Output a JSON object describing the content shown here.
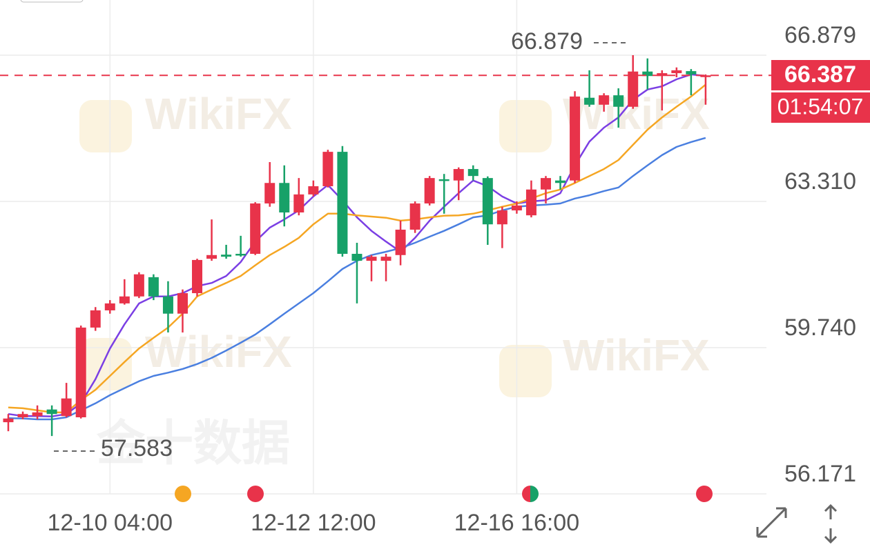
{
  "chart_data": {
    "type": "candlestick",
    "categories": [
      null,
      null,
      null,
      null,
      null,
      null,
      null,
      "12-10 04:00",
      null,
      null,
      null,
      null,
      null,
      null,
      null,
      null,
      null,
      null,
      null,
      null,
      null,
      "12-12 12:00",
      null,
      null,
      null,
      null,
      null,
      null,
      null,
      null,
      null,
      null,
      null,
      null,
      null,
      "12-16 16:00",
      null,
      null,
      null,
      null,
      null,
      null,
      null,
      null,
      null,
      null,
      null,
      null,
      null
    ],
    "open": [
      57.92,
      58.04,
      58.07,
      58.23,
      58.07,
      58.04,
      60.23,
      60.65,
      60.82,
      60.99,
      61.46,
      60.99,
      60.57,
      61.07,
      61.91,
      62.01,
      62.03,
      62.03,
      63.26,
      63.76,
      63.04,
      63.48,
      63.68,
      64.52,
      62.03,
      61.86,
      61.86,
      62.0,
      62.62,
      63.26,
      63.85,
      63.82,
      64.1,
      63.88,
      62.75,
      63.09,
      62.97,
      63.6,
      63.82,
      63.82,
      65.84,
      65.67,
      65.9,
      65.62,
      66.48,
      66.37,
      66.44,
      66.49,
      66.37
    ],
    "high": [
      58.12,
      58.18,
      58.33,
      58.33,
      58.88,
      60.28,
      60.73,
      60.9,
      61.41,
      61.58,
      61.53,
      61.36,
      61.16,
      61.91,
      62.87,
      62.25,
      62.47,
      63.29,
      64.27,
      64.19,
      63.88,
      63.82,
      64.57,
      64.66,
      62.3,
      62.0,
      62.03,
      62.84,
      63.31,
      63.93,
      63.98,
      64.14,
      64.19,
      63.92,
      63.18,
      63.31,
      63.82,
      63.93,
      63.93,
      66.0,
      66.51,
      65.95,
      66.07,
      66.879,
      66.8,
      66.51,
      66.58,
      66.54,
      66.41
    ],
    "low": [
      57.7,
      57.99,
      57.99,
      57.583,
      58.04,
      58.01,
      60.15,
      60.57,
      60.79,
      60.95,
      60.9,
      60.11,
      60.11,
      60.99,
      61.86,
      61.91,
      61.96,
      62.0,
      63.18,
      62.7,
      62.97,
      63.43,
      63.65,
      61.96,
      60.82,
      61.36,
      61.36,
      61.75,
      62.54,
      63.21,
      63.01,
      63.34,
      63.82,
      62.25,
      62.17,
      63.01,
      62.92,
      63.26,
      63.6,
      63.76,
      65.62,
      65.5,
      65.11,
      65.57,
      66.04,
      65.53,
      66.34,
      65.9,
      65.67
    ],
    "close": [
      58.01,
      58.12,
      58.16,
      58.12,
      58.5,
      60.23,
      60.65,
      60.82,
      60.99,
      61.53,
      60.99,
      60.57,
      61.07,
      61.88,
      62.0,
      61.96,
      62.0,
      63.26,
      63.76,
      63.04,
      63.48,
      63.68,
      64.52,
      62.03,
      61.86,
      61.96,
      61.96,
      62.62,
      63.26,
      63.88,
      63.82,
      64.1,
      63.93,
      62.75,
      63.09,
      63.21,
      63.6,
      63.88,
      63.76,
      65.87,
      65.67,
      65.9,
      65.62,
      66.48,
      66.37,
      66.44,
      66.51,
      66.41,
      66.387
    ],
    "up_color": "#e8334a",
    "down_color": "#17a168",
    "lines": [
      {
        "color": "#7b3fe4",
        "values": [
          58.12,
          58.07,
          58.07,
          58.06,
          58.12,
          58.38,
          58.97,
          59.72,
          60.31,
          60.82,
          60.99,
          60.99,
          61.07,
          61.24,
          61.32,
          61.49,
          61.83,
          62.33,
          62.67,
          62.87,
          63.09,
          63.43,
          63.71,
          63.34,
          62.92,
          62.59,
          62.33,
          62.08,
          62.42,
          62.84,
          63.18,
          63.51,
          63.82,
          63.68,
          63.43,
          63.26,
          63.31,
          63.34,
          63.51,
          64.19,
          64.77,
          65.11,
          65.36,
          65.79,
          66.04,
          66.12,
          66.29,
          66.41,
          66.37
        ]
      },
      {
        "color": "#f5a623",
        "values": [
          58.28,
          58.26,
          58.21,
          58.16,
          58.16,
          58.46,
          58.71,
          59.05,
          59.39,
          59.72,
          59.98,
          60.23,
          60.57,
          60.99,
          61.16,
          61.32,
          61.49,
          61.75,
          62.0,
          62.2,
          62.42,
          62.75,
          63.01,
          63.01,
          62.97,
          62.94,
          62.91,
          62.84,
          62.87,
          62.92,
          62.96,
          62.97,
          63.01,
          63.09,
          63.18,
          63.26,
          63.38,
          63.51,
          63.6,
          63.76,
          63.93,
          64.1,
          64.32,
          64.69,
          65.06,
          65.36,
          65.62,
          65.87,
          66.16
        ]
      },
      {
        "color": "#4a7fe0",
        "values": [
          58.02,
          58.01,
          57.99,
          57.99,
          58.04,
          58.21,
          58.38,
          58.58,
          58.75,
          58.92,
          59.05,
          59.13,
          59.22,
          59.34,
          59.49,
          59.67,
          59.86,
          60.06,
          60.31,
          60.57,
          60.82,
          61.07,
          61.36,
          61.66,
          61.86,
          62.0,
          62.08,
          62.17,
          62.3,
          62.45,
          62.59,
          62.75,
          62.92,
          62.97,
          63.09,
          63.18,
          63.21,
          63.23,
          63.26,
          63.38,
          63.46,
          63.56,
          63.65,
          63.93,
          64.19,
          64.44,
          64.64,
          64.76,
          64.86
        ]
      }
    ],
    "ylim": [
      56.171,
      68.226
    ],
    "yticks": [
      56.171,
      {
        "value": 59.74,
        "label": "59.740"
      },
      {
        "value": 63.31,
        "label": "63.310"
      },
      66.879
    ],
    "grid": true,
    "max_label": 66.879,
    "min_label": 57.583,
    "last_price": 66.387,
    "countdown": "01:54:07",
    "watermark": "WikiFX",
    "watermark_cn": "金十数据"
  }
}
